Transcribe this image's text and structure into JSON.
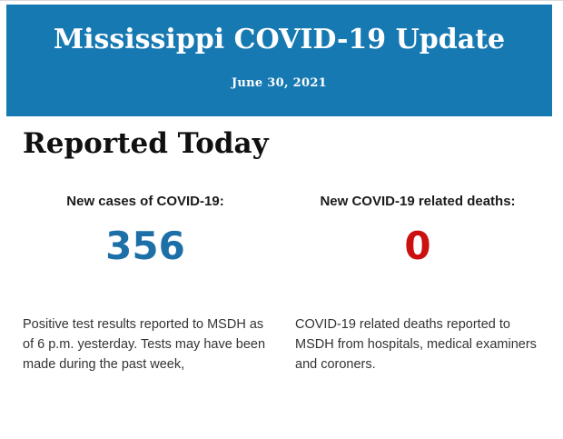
{
  "banner": {
    "title": "Mississippi COVID-19 Update",
    "date": "June 30, 2021",
    "bg_color": "#1779b2",
    "text_color": "#ffffff"
  },
  "main": {
    "heading": "Reported Today",
    "stats": [
      {
        "label": "New cases of COVID-19:",
        "value": "356",
        "value_color": "#1d6fa8",
        "description": "Positive test results reported to MSDH as of 6 p.m. yesterday. Tests may have been made during the past week,"
      },
      {
        "label": "New COVID-19 related deaths:",
        "value": "0",
        "value_color": "#cc1010",
        "description": "COVID-19 related deaths reported to MSDH from hospitals, medical examiners and coroners."
      }
    ]
  }
}
